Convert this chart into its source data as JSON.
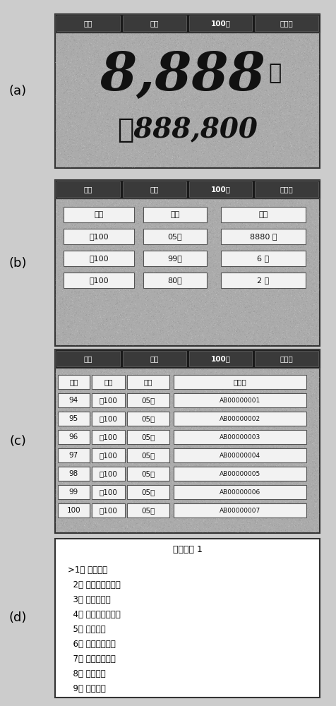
{
  "bg_color": "#cccccc",
  "header_tabs": [
    "分版",
    "累加",
    "100张",
    "冠字号"
  ],
  "label_a": "(a)",
  "label_b": "(b)",
  "label_c": "(c)",
  "label_d": "(d)",
  "panel_a_number": "8,888",
  "panel_a_unit": "张",
  "panel_a_money": "￥888,800",
  "panel_b_headers": [
    "金额",
    "版别",
    "张数"
  ],
  "panel_b_rows": [
    [
      "￥100",
      "05年",
      "8880 张"
    ],
    [
      "￥100",
      "99年",
      "6 张"
    ],
    [
      "￥100",
      "80年",
      "2 张"
    ]
  ],
  "panel_c_headers": [
    "序号",
    "金额",
    "版别",
    "冠字号"
  ],
  "panel_c_rows": [
    [
      "94",
      "￥100",
      "05年",
      "AB00000001"
    ],
    [
      "95",
      "￥100",
      "05年",
      "AB00000002"
    ],
    [
      "96",
      "￥100",
      "05年",
      "AB00000003"
    ],
    [
      "97",
      "￥100",
      "05年",
      "AB00000004"
    ],
    [
      "98",
      "￥100",
      "05年",
      "AB00000005"
    ],
    [
      "99",
      "￥100",
      "05年",
      "AB00000006"
    ],
    [
      "100",
      "￥100",
      "05年",
      "AB00000007"
    ]
  ],
  "panel_d_title": "设定画面 1",
  "panel_d_items": [
    ">1． 识别设定",
    "  2． 液晶显示器设定",
    "  3． 蜂鸣器设定",
    "  4． 日期／时间设定",
    "  5． 启动设定",
    "  6． 分版混点设定",
    "  7． 睡眠时间设定",
    "  8． 打印设定",
    "  9． 接口设定"
  ]
}
